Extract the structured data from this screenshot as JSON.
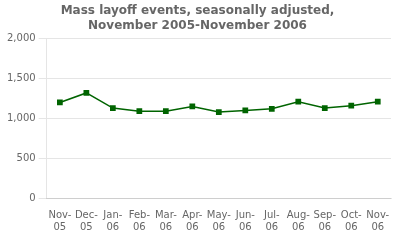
{
  "chart_data": {
    "type": "line",
    "title": "Mass layoff events, seasonally adjusted,\nNovember 2005-November 2006",
    "categories": [
      "Nov-\n05",
      "Dec-\n05",
      "Jan-\n06",
      "Feb-\n06",
      "Mar-\n06",
      "Apr-\n06",
      "May-\n06",
      "Jun-\n06",
      "Jul-\n06",
      "Aug-\n06",
      "Sep-\n06",
      "Oct-\n06",
      "Nov-\n06"
    ],
    "values": [
      1200,
      1320,
      1130,
      1090,
      1090,
      1150,
      1080,
      1100,
      1120,
      1210,
      1130,
      1160,
      1210
    ],
    "color": "#006400",
    "marker": "square",
    "ylim": [
      0,
      2000
    ],
    "yticks": [
      0,
      500,
      {
        "value": 1000,
        "label": "1,000"
      },
      {
        "value": 1500,
        "label": "1,500"
      },
      {
        "value": 2000,
        "label": "2,000"
      }
    ],
    "grid": true
  }
}
